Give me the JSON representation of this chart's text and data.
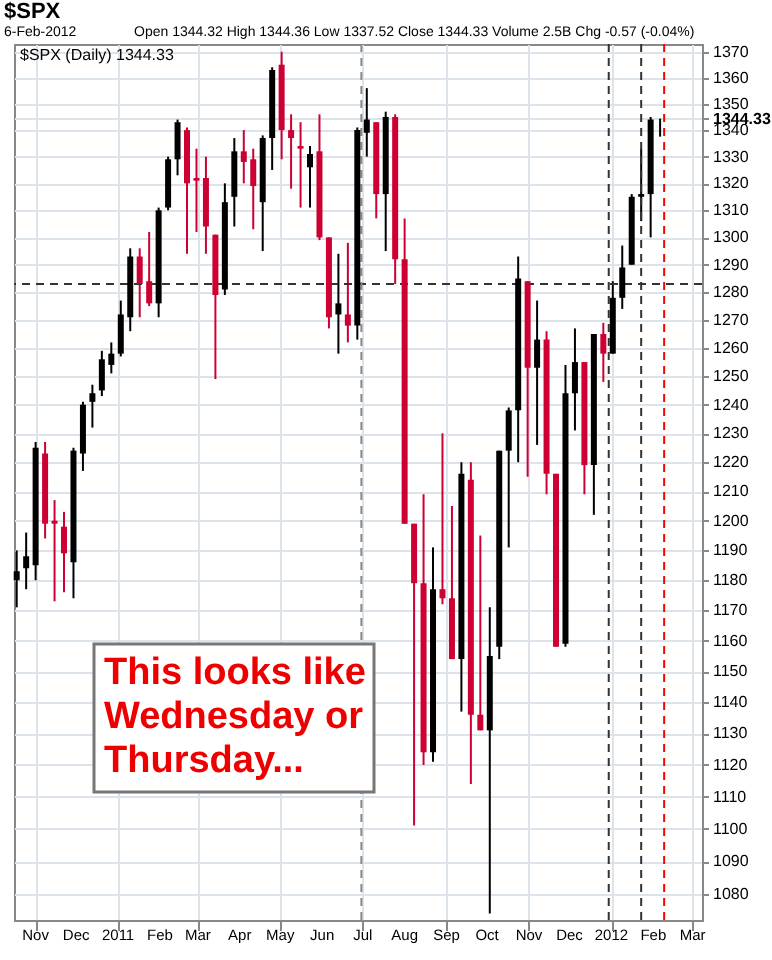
{
  "chart_data": {
    "type": "candlestick",
    "title": "$SPX",
    "subtitle": "6-Feb-2012",
    "annotations": [
      "Open 1344.32 High 1344.36 Low 1337.52 Close 1344.33 Volume 2.5B Chg -0.57 (-0.04%)",
      "$SPX (Daily) 1344.33",
      "This looks like Wednesday or Thursday..."
    ],
    "x": [
      "2010-10-18",
      "2010-10-25",
      "2010-11-01",
      "2010-11-08",
      "2010-11-15",
      "2010-11-22",
      "2010-11-29",
      "2010-12-06",
      "2010-12-13",
      "2010-12-20",
      "2010-12-27",
      "2011-01-03",
      "2011-01-10",
      "2011-01-17",
      "2011-01-24",
      "2011-01-31",
      "2011-02-07",
      "2011-02-14",
      "2011-02-21",
      "2011-02-28",
      "2011-03-07",
      "2011-03-14",
      "2011-03-21",
      "2011-03-28",
      "2011-04-04",
      "2011-04-11",
      "2011-04-18",
      "2011-04-25",
      "2011-05-02",
      "2011-05-09",
      "2011-05-16",
      "2011-05-23",
      "2011-05-30",
      "2011-06-06",
      "2011-06-13",
      "2011-06-20",
      "2011-06-27",
      "2011-07-04",
      "2011-07-11",
      "2011-07-18",
      "2011-07-25",
      "2011-08-01",
      "2011-08-08",
      "2011-08-15",
      "2011-08-22",
      "2011-08-29",
      "2011-09-05",
      "2011-09-12",
      "2011-09-19",
      "2011-09-26",
      "2011-10-03",
      "2011-10-10",
      "2011-10-17",
      "2011-10-24",
      "2011-10-31",
      "2011-11-07",
      "2011-11-14",
      "2011-11-21",
      "2011-11-28",
      "2011-12-05",
      "2011-12-12",
      "2011-12-19",
      "2011-12-26",
      "2012-01-02",
      "2012-01-09",
      "2012-01-16",
      "2012-01-23",
      "2012-01-30",
      "2012-02-06"
    ],
    "ohlc": [
      [
        1180,
        1190,
        1171,
        1183
      ],
      [
        1184,
        1196,
        1177,
        1188
      ],
      [
        1185,
        1227,
        1180,
        1225
      ],
      [
        1223,
        1227,
        1194,
        1199
      ],
      [
        1200,
        1207,
        1173,
        1199
      ],
      [
        1198,
        1203,
        1176,
        1189
      ],
      [
        1186,
        1225,
        1174,
        1224
      ],
      [
        1223,
        1241,
        1217,
        1240
      ],
      [
        1241,
        1247,
        1232,
        1244
      ],
      [
        1245,
        1259,
        1243,
        1256
      ],
      [
        1254,
        1262,
        1251,
        1258
      ],
      [
        1258,
        1277,
        1257,
        1272
      ],
      [
        1271,
        1296,
        1266,
        1293
      ],
      [
        1293,
        1296,
        1271,
        1283
      ],
      [
        1284,
        1302,
        1275,
        1276
      ],
      [
        1276,
        1311,
        1271,
        1310
      ],
      [
        1311,
        1330,
        1310,
        1329
      ],
      [
        1329,
        1344,
        1323,
        1343
      ],
      [
        1340,
        1341,
        1294,
        1320
      ],
      [
        1322,
        1333,
        1302,
        1321
      ],
      [
        1322,
        1330,
        1294,
        1304
      ],
      [
        1301,
        1301,
        1249,
        1279
      ],
      [
        1281,
        1320,
        1279,
        1313
      ],
      [
        1315,
        1337,
        1304,
        1332
      ],
      [
        1332,
        1340,
        1320,
        1328
      ],
      [
        1329,
        1333,
        1303,
        1319
      ],
      [
        1313,
        1338,
        1295,
        1337
      ],
      [
        1337,
        1364,
        1325,
        1363
      ],
      [
        1365,
        1370,
        1329,
        1340
      ],
      [
        1340,
        1346,
        1318,
        1337
      ],
      [
        1334,
        1343,
        1311,
        1333
      ],
      [
        1326,
        1334,
        1311,
        1331
      ],
      [
        1332,
        1346,
        1299,
        1300
      ],
      [
        1300,
        1300,
        1267,
        1271
      ],
      [
        1272,
        1294,
        1258,
        1276
      ],
      [
        1272,
        1298,
        1262,
        1268
      ],
      [
        1268,
        1341,
        1263,
        1340
      ],
      [
        1339,
        1356,
        1330,
        1344
      ],
      [
        1343,
        1343,
        1307,
        1316
      ],
      [
        1316,
        1347,
        1295,
        1345
      ],
      [
        1345,
        1346,
        1283,
        1292
      ],
      [
        1292,
        1307,
        1199,
        1199
      ],
      [
        1199,
        1199,
        1101,
        1179
      ],
      [
        1179,
        1209,
        1120,
        1124
      ],
      [
        1124,
        1191,
        1121,
        1177
      ],
      [
        1177,
        1230,
        1172,
        1174
      ],
      [
        1174,
        1205,
        1154,
        1154
      ],
      [
        1154,
        1220,
        1137,
        1216
      ],
      [
        1214,
        1220,
        1114,
        1136
      ],
      [
        1136,
        1195,
        1131,
        1131
      ],
      [
        1131,
        1171,
        1074,
        1155
      ],
      [
        1158,
        1224,
        1154,
        1224
      ],
      [
        1224,
        1239,
        1191,
        1238
      ],
      [
        1238,
        1293,
        1220,
        1285
      ],
      [
        1284,
        1284,
        1215,
        1253
      ],
      [
        1253,
        1277,
        1226,
        1263
      ],
      [
        1263,
        1266,
        1209,
        1216
      ],
      [
        1216,
        1216,
        1158,
        1158
      ],
      [
        1159,
        1254,
        1158,
        1244
      ],
      [
        1244,
        1267,
        1231,
        1255
      ],
      [
        1255,
        1255,
        1209,
        1219
      ],
      [
        1219,
        1265,
        1202,
        1265
      ],
      [
        1265,
        1269,
        1248,
        1258
      ],
      [
        1258,
        1284,
        1258,
        1278
      ],
      [
        1278,
        1297,
        1274,
        1289
      ],
      [
        1290,
        1316,
        1290,
        1315
      ],
      [
        1315,
        1333,
        1306,
        1316
      ],
      [
        1316,
        1345,
        1300,
        1344
      ],
      [
        1344.32,
        1344.36,
        1337.52,
        1344.33
      ]
    ],
    "colors": [
      "#000000",
      "#000000",
      "#000000",
      "#cc0033",
      "#cc0033",
      "#cc0033",
      "#000000",
      "#000000",
      "#000000",
      "#000000",
      "#000000",
      "#000000",
      "#000000",
      "#cc0033",
      "#cc0033",
      "#000000",
      "#000000",
      "#000000",
      "#cc0033",
      "#cc0033",
      "#cc0033",
      "#cc0033",
      "#000000",
      "#000000",
      "#cc0033",
      "#cc0033",
      "#000000",
      "#000000",
      "#cc0033",
      "#cc0033",
      "#cc0033",
      "#000000",
      "#cc0033",
      "#cc0033",
      "#000000",
      "#cc0033",
      "#000000",
      "#000000",
      "#cc0033",
      "#000000",
      "#cc0033",
      "#cc0033",
      "#cc0033",
      "#cc0033",
      "#000000",
      "#cc0033",
      "#cc0033",
      "#000000",
      "#cc0033",
      "#cc0033",
      "#000000",
      "#000000",
      "#000000",
      "#000000",
      "#cc0033",
      "#000000",
      "#cc0033",
      "#cc0033",
      "#000000",
      "#000000",
      "#cc0033",
      "#000000",
      "#cc0033",
      "#000000",
      "#000000",
      "#000000",
      "#000000",
      "#000000",
      "#000000"
    ],
    "xlim": [
      "2010-10-16",
      "2012-03-08"
    ],
    "xticks": [
      {
        "value": "2010-11-01",
        "label": "Nov"
      },
      {
        "value": "2010-12-01",
        "label": "Dec"
      },
      {
        "value": "2011-01-01",
        "label": "2011"
      },
      {
        "value": "2011-02-01",
        "label": "Feb"
      },
      {
        "value": "2011-03-01",
        "label": "Mar"
      },
      {
        "value": "2011-04-01",
        "label": "Apr"
      },
      {
        "value": "2011-05-01",
        "label": "May"
      },
      {
        "value": "2011-06-01",
        "label": "Jun"
      },
      {
        "value": "2011-07-01",
        "label": "Jul"
      },
      {
        "value": "2011-08-01",
        "label": "Aug"
      },
      {
        "value": "2011-09-01",
        "label": "Sep"
      },
      {
        "value": "2011-10-01",
        "label": "Oct"
      },
      {
        "value": "2011-11-01",
        "label": "Nov"
      },
      {
        "value": "2011-12-01",
        "label": "Dec"
      },
      {
        "value": "2012-01-01",
        "label": "2012"
      },
      {
        "value": "2012-02-01",
        "label": "Feb"
      },
      {
        "value": "2012-03-01",
        "label": "Mar"
      }
    ],
    "ylim": [
      1072,
      1373
    ],
    "yticks": [
      1080,
      1090,
      1100,
      1110,
      1120,
      1130,
      1140,
      1150,
      1160,
      1170,
      1180,
      1190,
      1200,
      1210,
      1220,
      1230,
      1240,
      1250,
      1260,
      1270,
      1280,
      1290,
      1300,
      1310,
      1320,
      1330,
      1340,
      {
        "value": 1344.33,
        "label": "1344.33"
      },
      1350,
      1360,
      1370
    ],
    "log": true,
    "grid": true,
    "ref_lines": [
      {
        "axis": "y",
        "value": 1283,
        "color": "#333333",
        "line_style": "dashed"
      },
      {
        "axis": "x",
        "value": "2011-06-30",
        "color": "#888888",
        "line_style": "dashed"
      },
      {
        "axis": "x",
        "value": "2011-12-30",
        "color": "#333333",
        "line_style": "dashed"
      },
      {
        "axis": "x",
        "value": "2012-01-23",
        "color": "#333333",
        "line_style": "dashed"
      },
      {
        "axis": "x",
        "value": "2012-02-09",
        "color": "#ff0000",
        "line_style": "dashed"
      }
    ]
  }
}
